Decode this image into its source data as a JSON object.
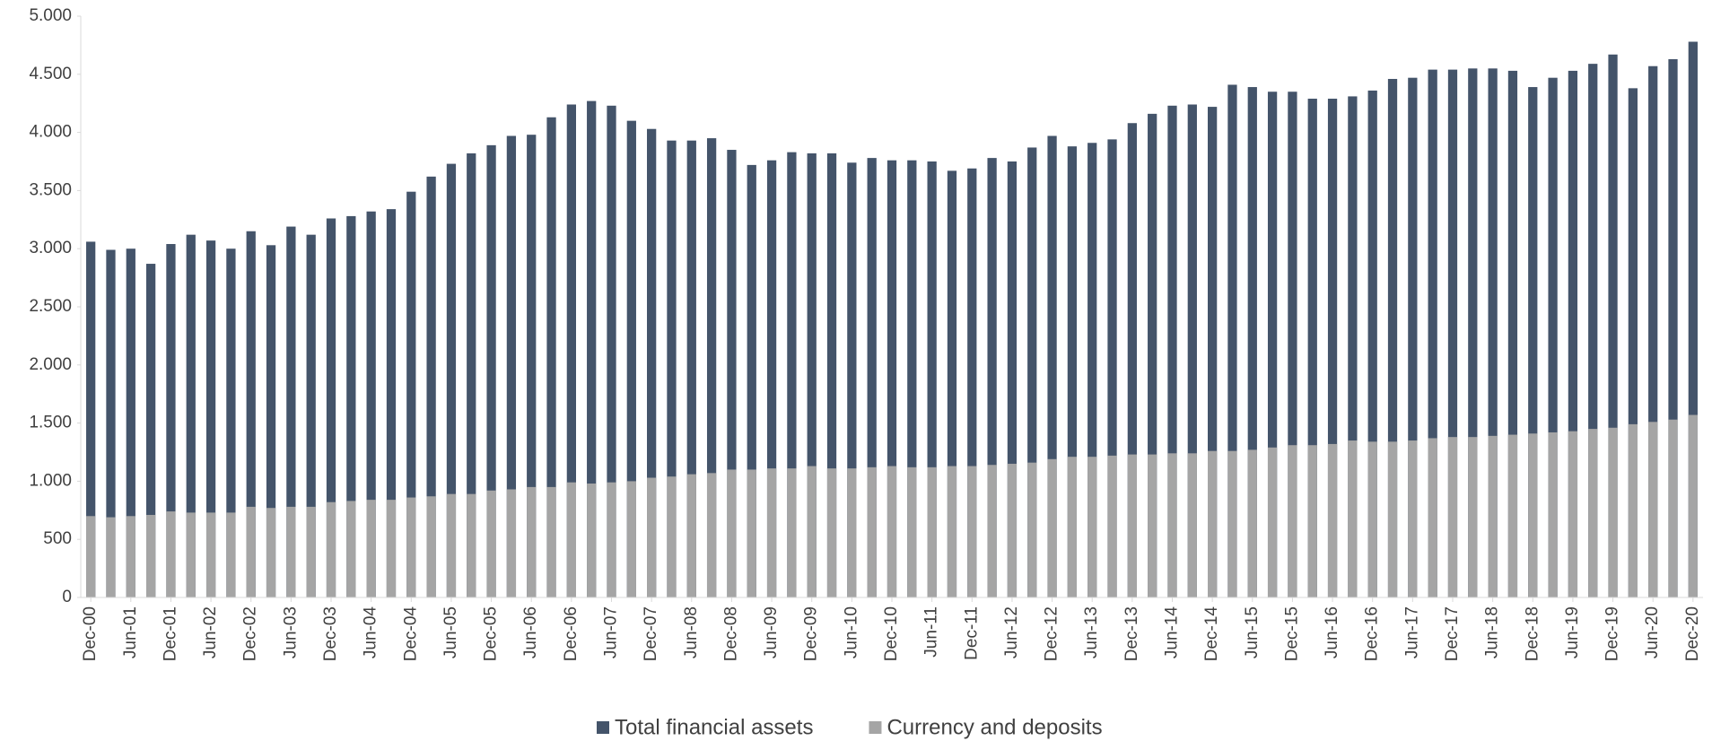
{
  "chart_data": {
    "type": "bar",
    "overlap": true,
    "categories": [
      "Dec-00",
      null,
      "Jun-01",
      null,
      "Dec-01",
      null,
      "Jun-02",
      null,
      "Dec-02",
      null,
      "Jun-03",
      null,
      "Dec-03",
      null,
      "Jun-04",
      null,
      "Dec-04",
      null,
      "Jun-05",
      null,
      "Dec-05",
      null,
      "Jun-06",
      null,
      "Dec-06",
      null,
      "Jun-07",
      null,
      "Dec-07",
      null,
      "Jun-08",
      null,
      "Dec-08",
      null,
      "Jun-09",
      null,
      "Dec-09",
      null,
      "Jun-10",
      null,
      "Dec-10",
      null,
      "Jun-11",
      null,
      "Dec-11",
      null,
      "Jun-12",
      null,
      "Dec-12",
      null,
      "Jun-13",
      null,
      "Dec-13",
      null,
      "Jun-14",
      null,
      "Dec-14",
      null,
      "Jun-15",
      null,
      "Dec-15",
      null,
      "Jun-16",
      null,
      "Dec-16",
      null,
      "Jun-17",
      null,
      "Dec-17",
      null,
      "Jun-18",
      null,
      "Dec-18",
      null,
      "Jun-19",
      null,
      "Dec-19",
      null,
      "Jun-20",
      null,
      "Dec-20"
    ],
    "series": [
      {
        "name": "Total financial assets",
        "color": "#44546a",
        "values": [
          3060,
          2990,
          3000,
          2870,
          3040,
          3120,
          3070,
          3000,
          3150,
          3030,
          3190,
          3120,
          3260,
          3280,
          3320,
          3340,
          3490,
          3620,
          3730,
          3820,
          3890,
          3970,
          3980,
          4130,
          4240,
          4270,
          4230,
          4100,
          4030,
          3930,
          3930,
          3950,
          3850,
          3720,
          3760,
          3830,
          3820,
          3820,
          3740,
          3780,
          3760,
          3760,
          3750,
          3670,
          3690,
          3780,
          3750,
          3870,
          3970,
          3880,
          3910,
          3940,
          4080,
          4160,
          4230,
          4240,
          4220,
          4410,
          4390,
          4350,
          4350,
          4290,
          4290,
          4310,
          4360,
          4460,
          4470,
          4540,
          4540,
          4550,
          4550,
          4530,
          4390,
          4470,
          4530,
          4590,
          4670,
          4380,
          4570,
          4630,
          4780
        ]
      },
      {
        "name": "Currency and deposits",
        "color": "#a5a5a5",
        "values": [
          700,
          690,
          700,
          710,
          740,
          730,
          730,
          730,
          780,
          770,
          780,
          780,
          820,
          830,
          840,
          840,
          860,
          870,
          890,
          890,
          920,
          930,
          950,
          950,
          990,
          980,
          990,
          1000,
          1030,
          1040,
          1060,
          1070,
          1100,
          1100,
          1110,
          1110,
          1130,
          1110,
          1110,
          1120,
          1130,
          1120,
          1120,
          1130,
          1130,
          1140,
          1150,
          1160,
          1190,
          1210,
          1210,
          1220,
          1230,
          1230,
          1240,
          1240,
          1260,
          1260,
          1270,
          1290,
          1310,
          1310,
          1320,
          1350,
          1340,
          1340,
          1350,
          1370,
          1380,
          1380,
          1390,
          1400,
          1410,
          1420,
          1430,
          1450,
          1460,
          1490,
          1510,
          1530,
          1570
        ]
      }
    ],
    "ylim": [
      0,
      5000
    ],
    "yticks": [
      0,
      500,
      {
        "value": 1000,
        "label": "1.000"
      },
      {
        "value": 1500,
        "label": "1.500"
      },
      {
        "value": 2000,
        "label": "2.000"
      },
      {
        "value": 2500,
        "label": "2.500"
      },
      {
        "value": 3000,
        "label": "3.000"
      },
      {
        "value": 3500,
        "label": "3.500"
      },
      {
        "value": 4000,
        "label": "4.000"
      },
      {
        "value": 4500,
        "label": "4.500"
      },
      {
        "value": 5000,
        "label": "5.000"
      }
    ],
    "grid": false,
    "legend": "bottom"
  }
}
